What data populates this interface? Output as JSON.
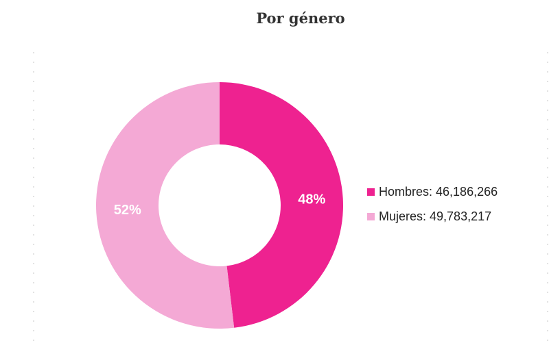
{
  "chart_data": {
    "type": "pie",
    "title": "Por género",
    "categories": [
      "Hombres",
      "Mujeres"
    ],
    "values": [
      46186266,
      49783217
    ],
    "percent_labels": [
      "48%",
      "52%"
    ],
    "legend_labels": [
      "Hombres: 46,186,266",
      "Mujeres: 49,783,217"
    ],
    "colors": [
      "#ee2290",
      "#f4a9d5"
    ],
    "style": "donut",
    "legend_position": "right"
  }
}
